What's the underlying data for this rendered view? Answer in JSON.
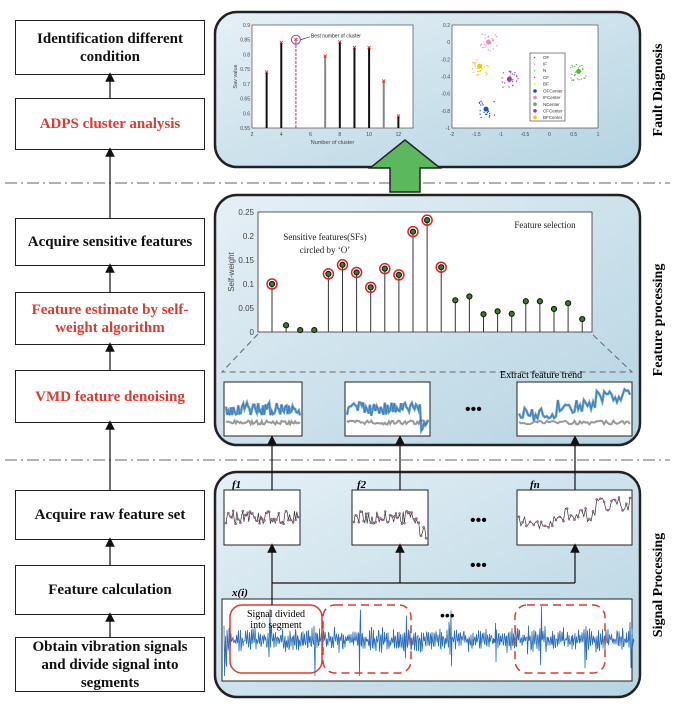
{
  "steps": [
    {
      "label": "Identification different condition",
      "highlight": false
    },
    {
      "label": "ADPS cluster analysis",
      "highlight": true
    },
    {
      "label": "Acquire sensitive features",
      "highlight": false
    },
    {
      "label": "Feature estimate by self-weight algorithm",
      "highlight": true
    },
    {
      "label": "VMD feature denoising",
      "highlight": true
    },
    {
      "label": "Acquire raw feature set",
      "highlight": false
    },
    {
      "label": "Feature calculation",
      "highlight": false
    },
    {
      "label": "Obtain vibration signals and divide signal into segments",
      "highlight": false
    }
  ],
  "sections": {
    "fault": "Fault Diagnosis",
    "feature": "Feature processing",
    "signal": "Signal Processing"
  },
  "colors": {
    "highlight": "#e03a2f",
    "panel": "#c4dde8",
    "arrow": "#5cb85c",
    "signal": "#2a6ebb"
  },
  "chart_data": [
    {
      "type": "stem",
      "title": "",
      "xlabel": "Number of cluster",
      "ylabel": "Sav value",
      "xlim": [
        2,
        13
      ],
      "ylim": [
        0.55,
        0.9
      ],
      "xticks": [
        2,
        4,
        6,
        8,
        10,
        12
      ],
      "yticks": [
        0.55,
        0.6,
        0.65,
        0.7,
        0.75,
        0.8,
        0.85,
        0.9
      ],
      "x": [
        3,
        4,
        5,
        7,
        8,
        9,
        10,
        11,
        12
      ],
      "values": [
        0.74,
        0.84,
        0.85,
        0.795,
        0.843,
        0.823,
        0.823,
        0.71,
        0.59
      ],
      "annotation": "Best number of cluster",
      "best_x": 5
    },
    {
      "type": "scatter",
      "xlim": [
        -2,
        1
      ],
      "ylim": [
        -1,
        0.2
      ],
      "xticks": [
        -2,
        -1.5,
        -1,
        -0.5,
        0,
        0.5,
        1
      ],
      "yticks": [
        0.2,
        0,
        -0.2,
        -0.4,
        -0.6,
        -0.8,
        -1
      ],
      "series": [
        {
          "name": "OF",
          "center_name": "OFCenter",
          "color": "#1f4fbf",
          "center": [
            -1.3,
            -0.78
          ]
        },
        {
          "name": "IF",
          "center_name": "IFCenter",
          "color": "#f08ac0",
          "center": [
            -1.25,
            0.0
          ]
        },
        {
          "name": "N",
          "center_name": "NCenter",
          "color": "#4cbf3a",
          "center": [
            0.6,
            -0.34
          ]
        },
        {
          "name": "CF",
          "center_name": "CFCenter",
          "color": "#a03aa8",
          "center": [
            -0.82,
            -0.43
          ]
        },
        {
          "name": "BF",
          "center_name": "BFCenter",
          "color": "#f5c800",
          "center": [
            -1.43,
            -0.28
          ]
        }
      ]
    },
    {
      "type": "stem",
      "title": "Feature selection",
      "ylabel": "Self-weight",
      "ylim": [
        0,
        0.25
      ],
      "yticks": [
        0,
        0.05,
        0.1,
        0.15,
        0.2,
        0.25
      ],
      "values": [
        0.1,
        0.014,
        0.004,
        0.004,
        0.121,
        0.14,
        0.124,
        0.093,
        0.132,
        0.119,
        0.209,
        0.233,
        0.135,
        0.066,
        0.074,
        0.037,
        0.043,
        0.038,
        0.064,
        0.064,
        0.048,
        0.06,
        0.027
      ],
      "selected": [
        0,
        4,
        5,
        6,
        7,
        8,
        9,
        10,
        11,
        12
      ],
      "annotation_line1": "Sensitive features(SFs)",
      "annotation_line2": "circled by ‘O’"
    }
  ],
  "feature_processing": {
    "trend_label": "Extract feature trend",
    "ellipsis": "•••"
  },
  "signal_processing": {
    "f1": "f1",
    "f2": "f2",
    "fn": "fn",
    "signal_label": "x(i)",
    "segment_label_1": "Signal divided",
    "segment_label_2": "into segment",
    "ellipsis": "•••"
  }
}
